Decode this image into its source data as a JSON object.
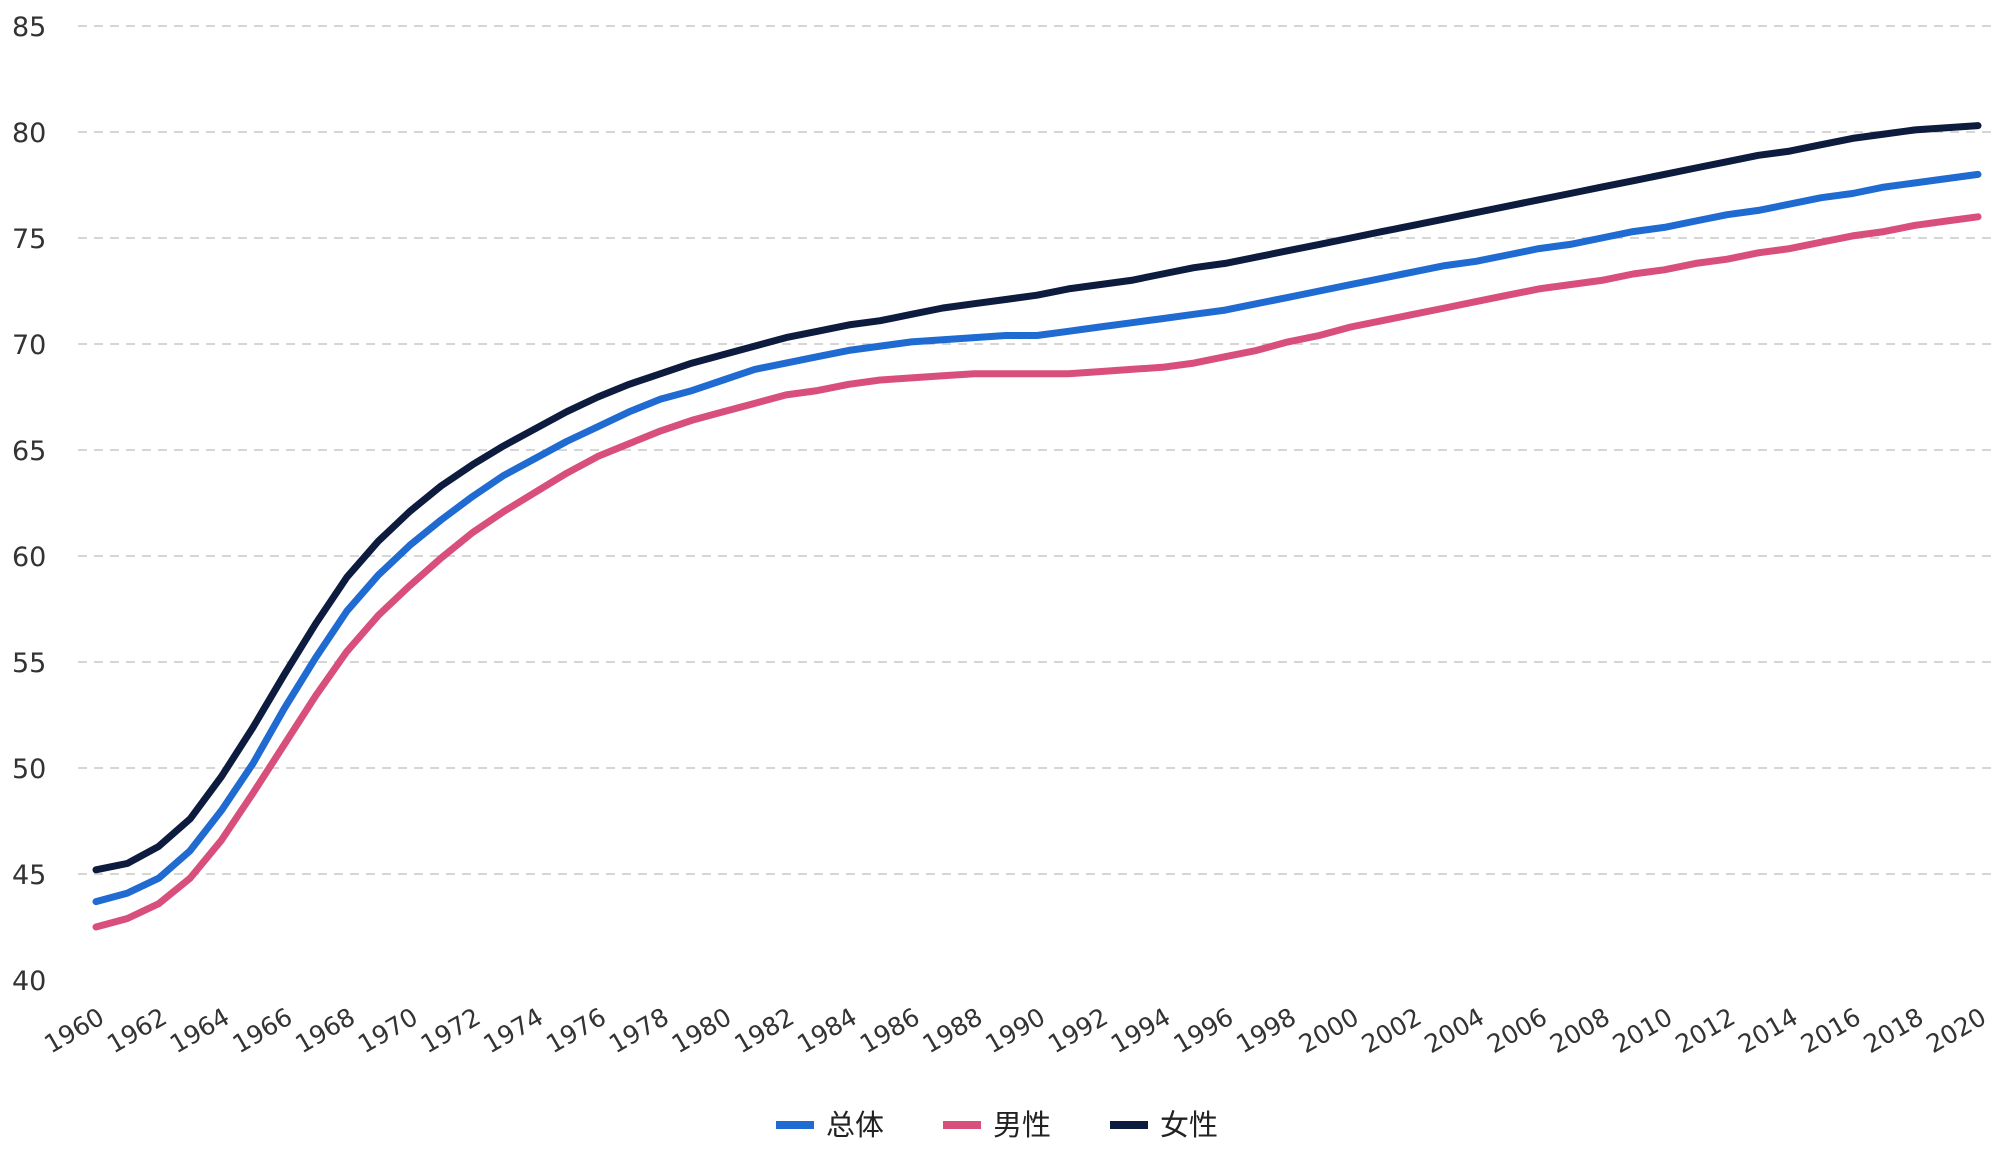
{
  "chart_data": {
    "type": "line",
    "title": "",
    "xlabel": "",
    "ylabel": "",
    "x": [
      1960,
      1961,
      1962,
      1963,
      1964,
      1965,
      1966,
      1967,
      1968,
      1969,
      1970,
      1971,
      1972,
      1973,
      1974,
      1975,
      1976,
      1977,
      1978,
      1979,
      1980,
      1981,
      1982,
      1983,
      1984,
      1985,
      1986,
      1987,
      1988,
      1989,
      1990,
      1991,
      1992,
      1993,
      1994,
      1995,
      1996,
      1997,
      1998,
      1999,
      2000,
      2001,
      2002,
      2003,
      2004,
      2005,
      2006,
      2007,
      2008,
      2009,
      2010,
      2011,
      2012,
      2013,
      2014,
      2015,
      2016,
      2017,
      2018,
      2019,
      2020
    ],
    "x_tick_labels": [
      "1960",
      "1962",
      "1964",
      "1966",
      "1968",
      "1970",
      "1972",
      "1974",
      "1976",
      "1978",
      "1980",
      "1982",
      "1984",
      "1986",
      "1988",
      "1990",
      "1992",
      "1994",
      "1996",
      "1998",
      "2000",
      "2002",
      "2004",
      "2006",
      "2008",
      "2010",
      "2012",
      "2014",
      "2016",
      "2018",
      "2020"
    ],
    "y_ticks": [
      40,
      45,
      50,
      55,
      60,
      65,
      70,
      75,
      80,
      85
    ],
    "ylim": [
      40,
      85
    ],
    "grid": true,
    "legend_position": "bottom-center",
    "series": [
      {
        "name": "总体",
        "color": "#1f6bd1",
        "values": [
          43.7,
          44.1,
          44.8,
          46.1,
          48.0,
          50.2,
          52.8,
          55.2,
          57.4,
          59.1,
          60.5,
          61.7,
          62.8,
          63.8,
          64.6,
          65.4,
          66.1,
          66.8,
          67.4,
          67.8,
          68.3,
          68.8,
          69.1,
          69.4,
          69.7,
          69.9,
          70.1,
          70.2,
          70.3,
          70.4,
          70.4,
          70.6,
          70.8,
          71.0,
          71.2,
          71.4,
          71.6,
          71.9,
          72.2,
          72.5,
          72.8,
          73.1,
          73.4,
          73.7,
          73.9,
          74.2,
          74.5,
          74.7,
          75.0,
          75.3,
          75.5,
          75.8,
          76.1,
          76.3,
          76.6,
          76.9,
          77.1,
          77.4,
          77.6,
          77.8,
          78.0
        ]
      },
      {
        "name": "男性",
        "color": "#d94f7c",
        "values": [
          42.5,
          42.9,
          43.6,
          44.8,
          46.6,
          48.8,
          51.1,
          53.4,
          55.5,
          57.2,
          58.6,
          59.9,
          61.1,
          62.1,
          63.0,
          63.9,
          64.7,
          65.3,
          65.9,
          66.4,
          66.8,
          67.2,
          67.6,
          67.8,
          68.1,
          68.3,
          68.4,
          68.5,
          68.6,
          68.6,
          68.6,
          68.6,
          68.7,
          68.8,
          68.9,
          69.1,
          69.4,
          69.7,
          70.1,
          70.4,
          70.8,
          71.1,
          71.4,
          71.7,
          72.0,
          72.3,
          72.6,
          72.8,
          73.0,
          73.3,
          73.5,
          73.8,
          74.0,
          74.3,
          74.5,
          74.8,
          75.1,
          75.3,
          75.6,
          75.8,
          76.0
        ]
      },
      {
        "name": "女性",
        "color": "#0d1b3e",
        "values": [
          45.2,
          45.5,
          46.3,
          47.6,
          49.6,
          51.9,
          54.4,
          56.8,
          59.0,
          60.7,
          62.1,
          63.3,
          64.3,
          65.2,
          66.0,
          66.8,
          67.5,
          68.1,
          68.6,
          69.1,
          69.5,
          69.9,
          70.3,
          70.6,
          70.9,
          71.1,
          71.4,
          71.7,
          71.9,
          72.1,
          72.3,
          72.6,
          72.8,
          73.0,
          73.3,
          73.6,
          73.8,
          74.1,
          74.4,
          74.7,
          75.0,
          75.3,
          75.6,
          75.9,
          76.2,
          76.5,
          76.8,
          77.1,
          77.4,
          77.7,
          78.0,
          78.3,
          78.6,
          78.9,
          79.1,
          79.4,
          79.7,
          79.9,
          80.1,
          80.2,
          80.3
        ]
      }
    ]
  }
}
